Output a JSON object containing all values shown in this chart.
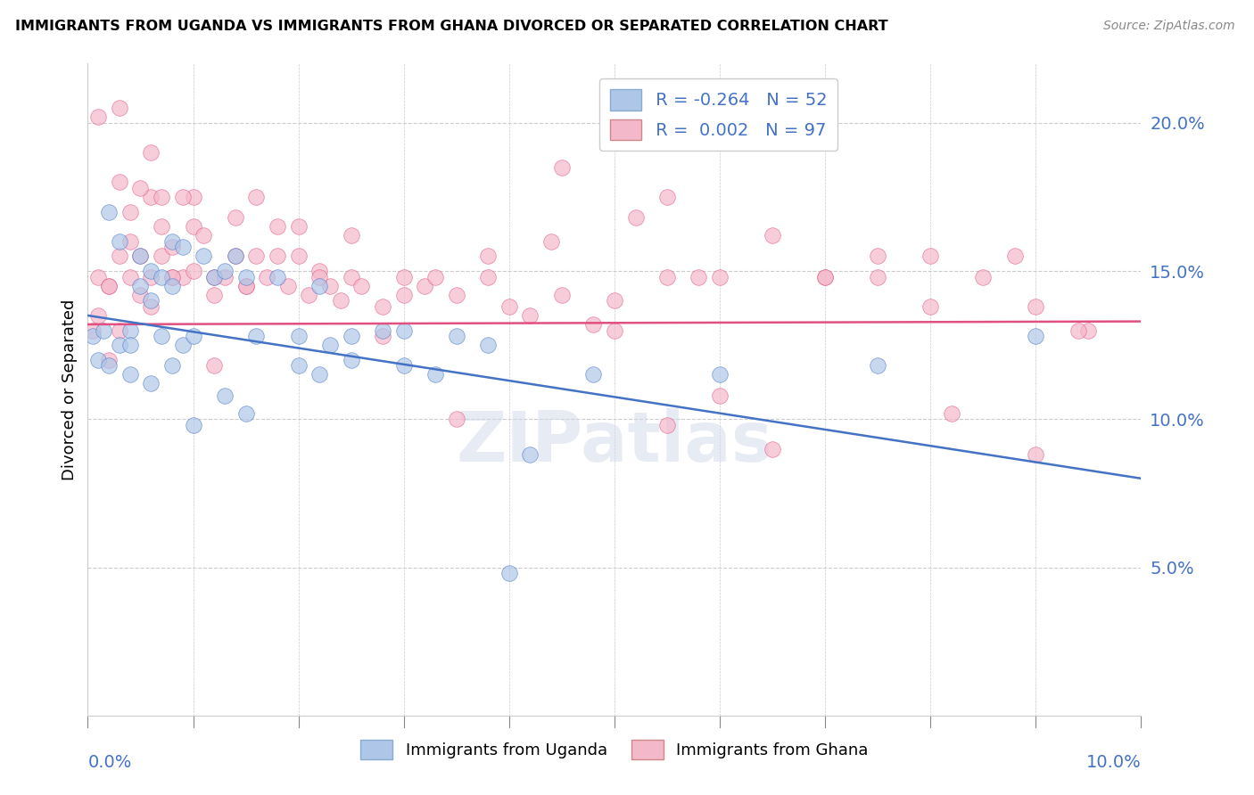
{
  "title": "IMMIGRANTS FROM UGANDA VS IMMIGRANTS FROM GHANA DIVORCED OR SEPARATED CORRELATION CHART",
  "source": "Source: ZipAtlas.com",
  "ylabel": "Divorced or Separated",
  "uganda_color": "#aec6e8",
  "ghana_color": "#f4b8cb",
  "uganda_line_color": "#4472c4",
  "ghana_line_color": "#e05080",
  "background_color": "#ffffff",
  "grid_color": "#cccccc",
  "watermark": "ZIPatlas",
  "label_color": "#4472c4",
  "legend_r_uganda": "R = -0.264",
  "legend_n_uganda": "N = 52",
  "legend_r_ghana": "R =  0.002",
  "legend_n_ghana": "N = 97",
  "uganda_scatter_x": [
    0.0005,
    0.001,
    0.0015,
    0.002,
    0.002,
    0.003,
    0.003,
    0.004,
    0.004,
    0.005,
    0.005,
    0.006,
    0.006,
    0.007,
    0.007,
    0.008,
    0.008,
    0.009,
    0.009,
    0.01,
    0.011,
    0.012,
    0.013,
    0.014,
    0.015,
    0.016,
    0.018,
    0.02,
    0.022,
    0.025,
    0.025,
    0.028,
    0.03,
    0.033,
    0.035,
    0.038,
    0.02,
    0.023,
    0.01,
    0.013,
    0.015,
    0.008,
    0.006,
    0.004,
    0.03,
    0.022,
    0.042,
    0.048,
    0.06,
    0.075,
    0.04,
    0.09
  ],
  "uganda_scatter_y": [
    0.128,
    0.12,
    0.13,
    0.118,
    0.17,
    0.125,
    0.16,
    0.13,
    0.125,
    0.155,
    0.145,
    0.14,
    0.15,
    0.148,
    0.128,
    0.16,
    0.145,
    0.158,
    0.125,
    0.128,
    0.155,
    0.148,
    0.15,
    0.155,
    0.148,
    0.128,
    0.148,
    0.128,
    0.145,
    0.128,
    0.12,
    0.13,
    0.13,
    0.115,
    0.128,
    0.125,
    0.118,
    0.125,
    0.098,
    0.108,
    0.102,
    0.118,
    0.112,
    0.115,
    0.118,
    0.115,
    0.088,
    0.115,
    0.115,
    0.118,
    0.048,
    0.128
  ],
  "ghana_scatter_x": [
    0.0005,
    0.001,
    0.001,
    0.002,
    0.002,
    0.003,
    0.003,
    0.004,
    0.004,
    0.005,
    0.005,
    0.006,
    0.006,
    0.007,
    0.007,
    0.008,
    0.008,
    0.009,
    0.01,
    0.01,
    0.011,
    0.012,
    0.012,
    0.013,
    0.014,
    0.015,
    0.016,
    0.017,
    0.018,
    0.019,
    0.02,
    0.021,
    0.022,
    0.023,
    0.024,
    0.025,
    0.026,
    0.028,
    0.03,
    0.032,
    0.035,
    0.038,
    0.04,
    0.042,
    0.045,
    0.05,
    0.055,
    0.06,
    0.065,
    0.07,
    0.075,
    0.08,
    0.085,
    0.09,
    0.095,
    0.035,
    0.028,
    0.022,
    0.018,
    0.015,
    0.012,
    0.01,
    0.008,
    0.006,
    0.038,
    0.048,
    0.058,
    0.06,
    0.08,
    0.09,
    0.055,
    0.005,
    0.003,
    0.014,
    0.02,
    0.03,
    0.004,
    0.007,
    0.009,
    0.016,
    0.025,
    0.033,
    0.044,
    0.052,
    0.065,
    0.075,
    0.082,
    0.088,
    0.094,
    0.003,
    0.006,
    0.055,
    0.07,
    0.045,
    0.002,
    0.001,
    0.05
  ],
  "ghana_scatter_y": [
    0.13,
    0.135,
    0.148,
    0.12,
    0.145,
    0.13,
    0.155,
    0.148,
    0.16,
    0.142,
    0.155,
    0.148,
    0.138,
    0.155,
    0.165,
    0.148,
    0.158,
    0.148,
    0.15,
    0.165,
    0.162,
    0.148,
    0.142,
    0.148,
    0.155,
    0.145,
    0.155,
    0.148,
    0.155,
    0.145,
    0.155,
    0.142,
    0.15,
    0.145,
    0.14,
    0.148,
    0.145,
    0.138,
    0.148,
    0.145,
    0.142,
    0.148,
    0.138,
    0.135,
    0.142,
    0.14,
    0.148,
    0.148,
    0.162,
    0.148,
    0.155,
    0.138,
    0.148,
    0.138,
    0.13,
    0.1,
    0.128,
    0.148,
    0.165,
    0.145,
    0.118,
    0.175,
    0.148,
    0.175,
    0.155,
    0.132,
    0.148,
    0.108,
    0.155,
    0.088,
    0.098,
    0.178,
    0.18,
    0.168,
    0.165,
    0.142,
    0.17,
    0.175,
    0.175,
    0.175,
    0.162,
    0.148,
    0.16,
    0.168,
    0.09,
    0.148,
    0.102,
    0.155,
    0.13,
    0.205,
    0.19,
    0.175,
    0.148,
    0.185,
    0.145,
    0.202,
    0.13
  ],
  "uganda_line_x0": 0.0,
  "uganda_line_x1": 0.1,
  "uganda_line_y0": 0.135,
  "uganda_line_y1": 0.08,
  "ghana_line_x0": 0.0,
  "ghana_line_x1": 0.1,
  "ghana_line_y0": 0.132,
  "ghana_line_y1": 0.133,
  "xlim": [
    0.0,
    0.1
  ],
  "ylim": [
    0.0,
    0.22
  ],
  "ytick_positions": [
    0.0,
    0.05,
    0.1,
    0.15,
    0.2
  ],
  "ytick_labels": [
    "",
    "5.0%",
    "10.0%",
    "15.0%",
    "20.0%"
  ],
  "xtick_left_label": "0.0%",
  "xtick_right_label": "10.0%"
}
